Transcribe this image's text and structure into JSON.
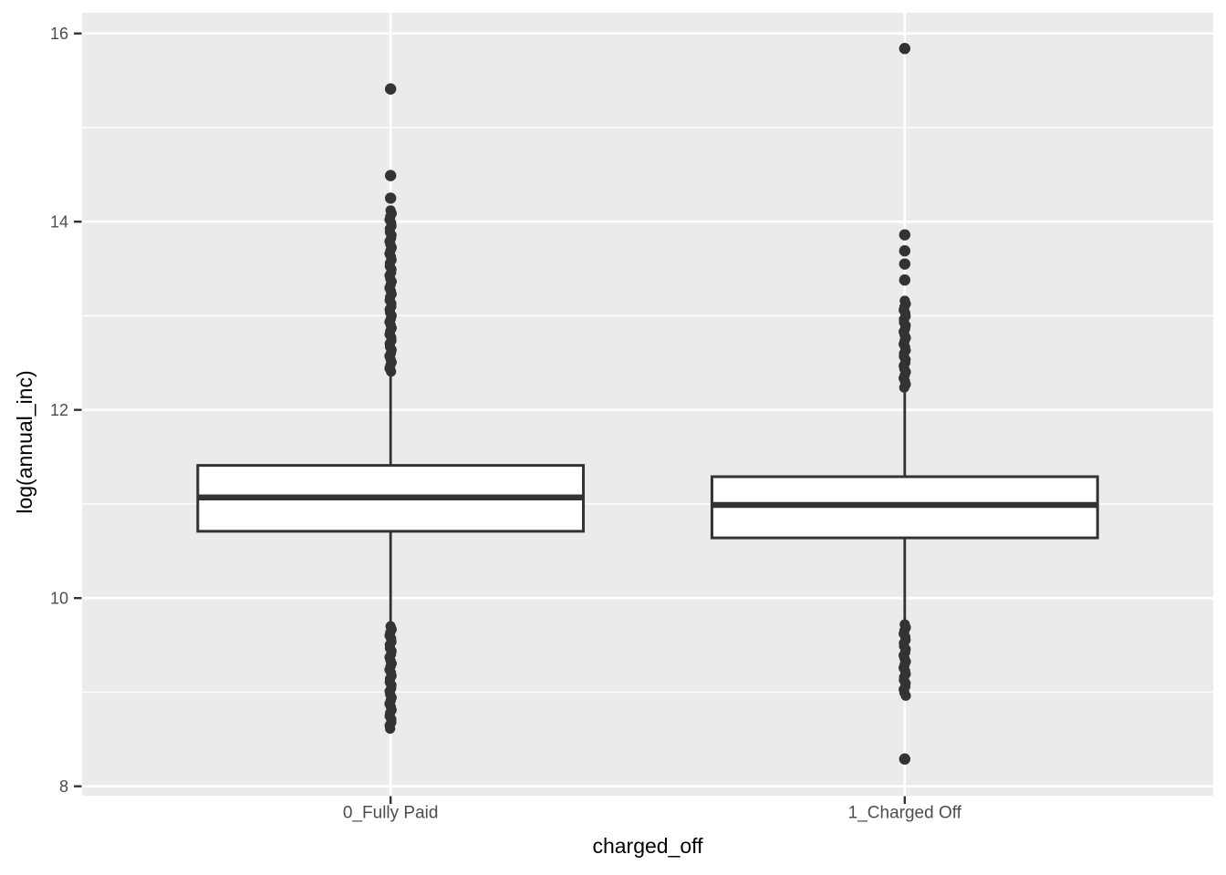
{
  "chart_data": {
    "type": "boxplot",
    "title": "",
    "xlabel": "charged_off",
    "ylabel": "log(annual_inc)",
    "ylim": [
      7.9,
      16.22
    ],
    "grid": true,
    "legend": "none",
    "panel_bg": "#ebebeb",
    "grid_color": "#ffffff",
    "stroke_color": "#333333",
    "box_fill": "#ffffff",
    "tick_label_color": "#4d4d4d",
    "axis_title_color": "#000000",
    "y_major_ticks": [
      {
        "value": 8,
        "label": "8"
      },
      {
        "value": 10,
        "label": "10"
      },
      {
        "value": 12,
        "label": "12"
      },
      {
        "value": 14,
        "label": "14"
      },
      {
        "value": 16,
        "label": "16"
      }
    ],
    "y_minor_ticks": [
      9,
      11,
      13,
      15
    ],
    "categories": [
      "0_Fully Paid",
      "1_Charged Off"
    ],
    "series": [
      {
        "category": "0_Fully Paid",
        "q1": 10.71,
        "median": 11.07,
        "q3": 11.41,
        "whisker_low": 9.69,
        "whisker_high": 12.39,
        "outlier_clusters": [
          [
            12.4,
            14.12
          ],
          [
            8.59,
            9.7
          ]
        ],
        "outlier_points": [
          14.25,
          14.49,
          15.41
        ]
      },
      {
        "category": "1_Charged Off",
        "q1": 10.64,
        "median": 10.99,
        "q3": 11.29,
        "whisker_low": 9.74,
        "whisker_high": 12.2,
        "outlier_clusters": [
          [
            12.21,
            13.16
          ],
          [
            8.95,
            9.72
          ]
        ],
        "outlier_points": [
          13.38,
          13.55,
          13.69,
          13.86,
          15.84,
          8.29
        ]
      }
    ]
  }
}
